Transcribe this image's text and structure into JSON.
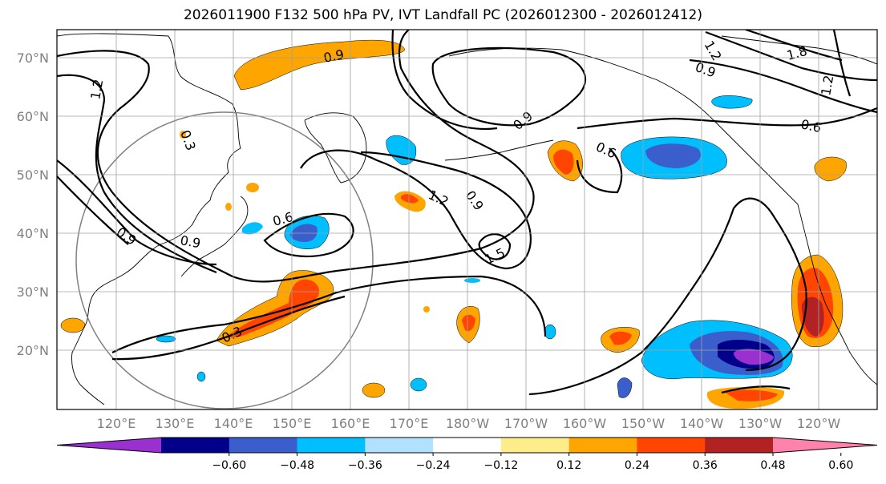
{
  "title": "2026011900 F132 500 hPa PV, IVT Landfall PC (2026012300 - 2026012412)",
  "lat_labels": [
    "70°N",
    "60°N",
    "50°N",
    "40°N",
    "30°N",
    "20°N"
  ],
  "lon_labels": [
    "120°E",
    "130°E",
    "140°E",
    "150°E",
    "160°E",
    "170°E",
    "180°W",
    "170°W",
    "160°W",
    "150°W",
    "140°W",
    "130°W",
    "120°W"
  ],
  "contour_labels": [
    "0.9",
    "1.2",
    "0.3",
    "0.9",
    "0.6",
    "1.2",
    "1.8",
    "1.2",
    "0.6",
    "0.9",
    "0.6",
    "0.9",
    "1.2",
    "0.9",
    "1.5",
    "0.3",
    "0.9"
  ],
  "colorbar": {
    "ticks": [
      "−0.60",
      "−0.48",
      "−0.36",
      "−0.24",
      "−0.12",
      "0.12",
      "0.24",
      "0.36",
      "0.48",
      "0.60"
    ],
    "colors": [
      "#9b30d0",
      "#00008b",
      "#3a5fcd",
      "#00bfff",
      "#b0e2ff",
      "#ffffff",
      "#ffec8b",
      "#ffa500",
      "#ff4500",
      "#b22222",
      "#ff82ab"
    ]
  }
}
